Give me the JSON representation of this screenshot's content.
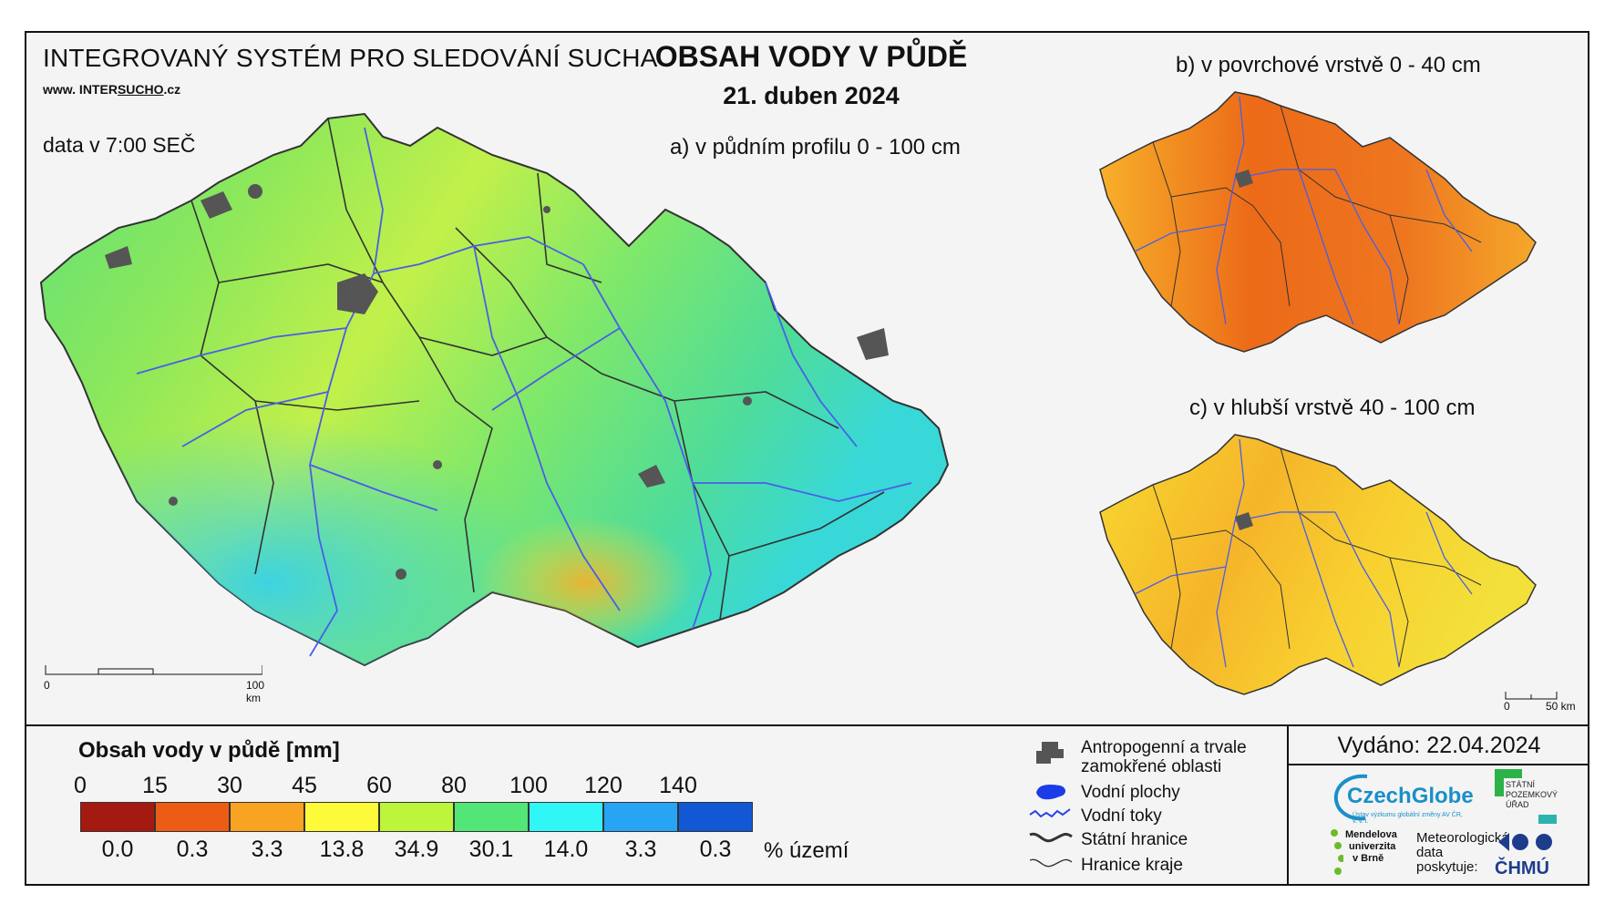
{
  "header": {
    "system_name": "INTEGROVANÝ SYSTÉM PRO SLEDOVÁNÍ SUCHA",
    "website_prefix": "www. INTER",
    "website_highlight": "SUCHO",
    "website_suffix": ".cz",
    "data_time": "data v 7:00 SEČ",
    "title": "OBSAH VODY V PŮDĚ",
    "date": "21. duben 2024"
  },
  "maps": {
    "main_label": "a) v půdním profilu 0 - 100 cm",
    "surface_label": "b) v povrchové vrstvě 0 - 40 cm",
    "deep_label": "c) v hlubší vrstvě 40 - 100 cm",
    "main_scale_start": "0",
    "main_scale_end": "100 km",
    "small_scale_start": "0",
    "small_scale_end": "50 km"
  },
  "legend": {
    "title": "Obsah vody v půdě  [mm]",
    "thresholds": [
      "0",
      "15",
      "30",
      "45",
      "60",
      "80",
      "100",
      "120",
      "140"
    ],
    "classes": [
      {
        "color": "#a51a10",
        "percent": "0.0"
      },
      {
        "color": "#ec5c14",
        "percent": "0.3"
      },
      {
        "color": "#f9a322",
        "percent": "3.3"
      },
      {
        "color": "#fdfa3a",
        "percent": "13.8"
      },
      {
        "color": "#bdf43c",
        "percent": "34.9"
      },
      {
        "color": "#52e676",
        "percent": "30.1"
      },
      {
        "color": "#30f6f6",
        "percent": "14.0"
      },
      {
        "color": "#28a4f4",
        "percent": "3.3"
      },
      {
        "color": "#1258d4",
        "percent": "0.3"
      }
    ],
    "percent_unit": "% území"
  },
  "symbols": {
    "anthropogenic_line1": "Antropogenní a trvale",
    "anthropogenic_line2": "zamokřené oblasti",
    "water_bodies": "Vodní plochy",
    "water_streams": "Vodní toky",
    "state_border": "Státní hranice",
    "region_border": "Hranice kraje"
  },
  "issued": "Vydáno: 22.04.2024",
  "logos": {
    "czechglobe": "CzechGlobe",
    "czechglobe_sub": "Ústav výzkumu globální změny AV ČR, v. v. i.",
    "spu_line1": "STÁTNÍ",
    "spu_line2": "POZEMKOVÝ",
    "spu_line3": "ÚŘAD",
    "mendel_line1": "Mendelova",
    "mendel_line2": "univerzita",
    "mendel_line3": "v Brně",
    "meteo_line1": "Meteorologická",
    "meteo_line2": "data",
    "meteo_line3": "poskytuje:",
    "chmu": "ČHMÚ"
  }
}
